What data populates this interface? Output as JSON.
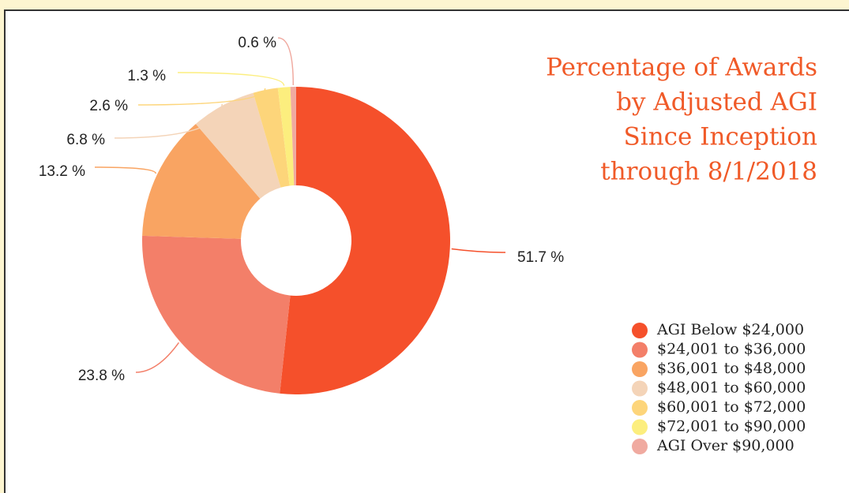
{
  "chart_data": {
    "type": "donut",
    "title": [
      "Percentage of Awards",
      "by Adjusted AGI",
      "Since Inception",
      "through 8/1/2018"
    ],
    "categories": [
      "AGI Below $24,000",
      "$24,001 to $36,000",
      "$36,001 to $48,000",
      "$48,001 to $60,000",
      "$60,001 to $72,000",
      "$72,001 to $90,000",
      "AGI Over $90,000"
    ],
    "values": [
      51.7,
      23.8,
      13.2,
      6.8,
      2.6,
      1.3,
      0.6
    ],
    "value_labels": [
      "51.7 %",
      "23.8 %",
      "13.2 %",
      "6.8 %",
      "2.6 %",
      "1.3 %",
      "0.6 %"
    ],
    "colors": [
      "#f5502b",
      "#f37f69",
      "#f9a462",
      "#f4d4b8",
      "#fdd57a",
      "#fcee7e",
      "#f0aaa0"
    ]
  }
}
